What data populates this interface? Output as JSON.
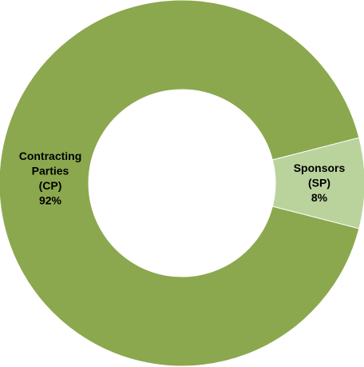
{
  "chart_data": {
    "type": "pie",
    "variant": "donut",
    "title": "",
    "legend": "none",
    "slices": [
      {
        "label_lines": [
          "Sponsors",
          "(SP)",
          "8%"
        ],
        "value": 8,
        "color": "#bad39c"
      },
      {
        "label_lines": [
          "Contracting",
          "Parties",
          "(CP)",
          "92%"
        ],
        "value": 92,
        "color": "#8ba84e"
      }
    ]
  }
}
